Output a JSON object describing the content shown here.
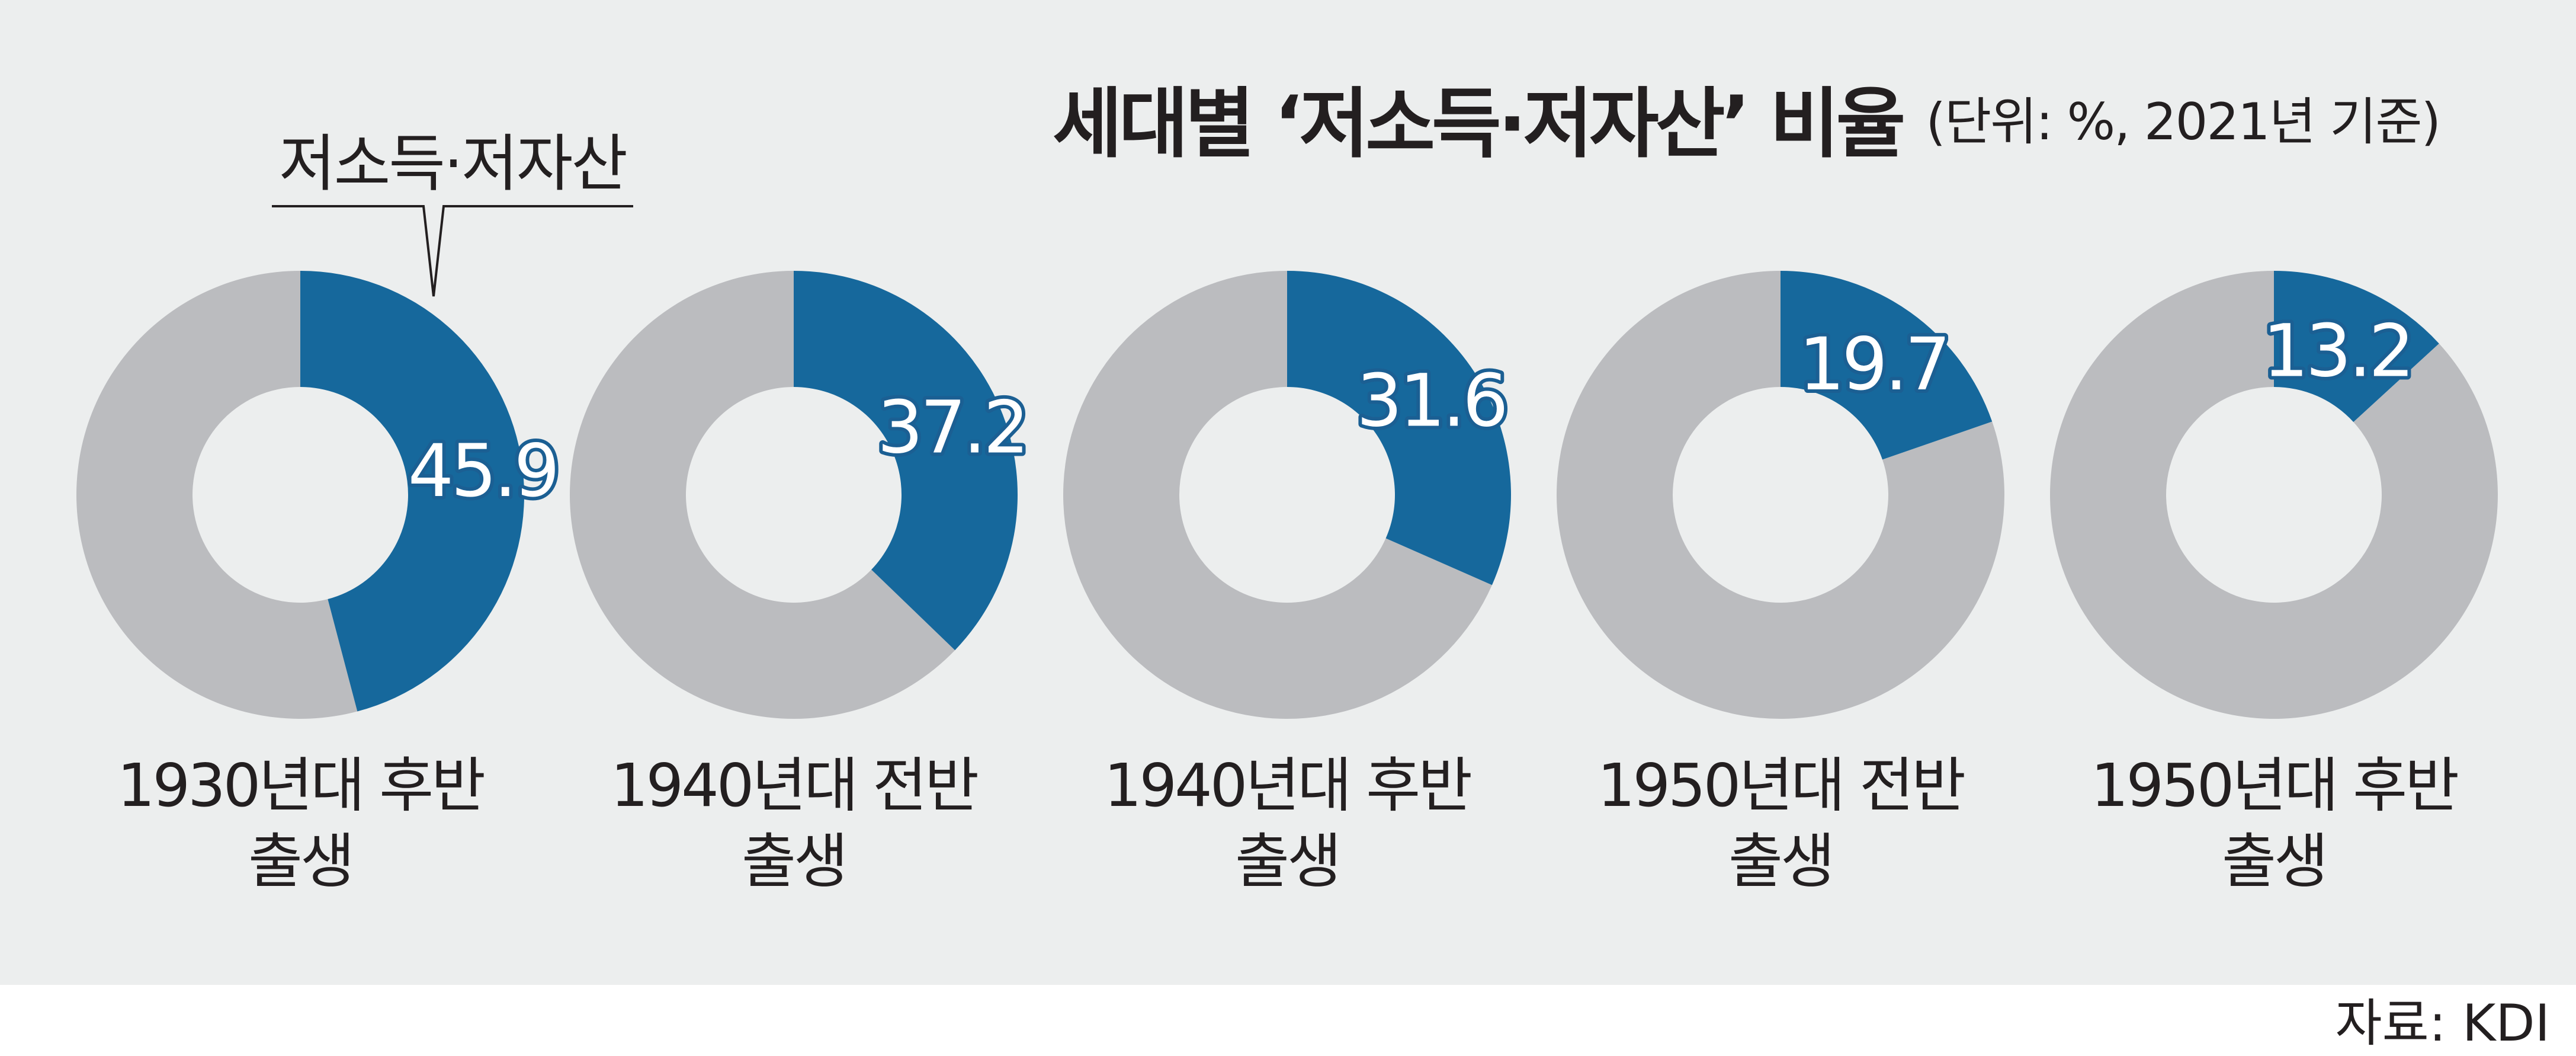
{
  "chart_data": {
    "type": "pie",
    "title": "세대별 ‘저소득·저자산’ 비율",
    "subtitle": "(단위: %, 2021년 기준)",
    "unit": "%",
    "series_name": "저소득·저자산",
    "categories": [
      [
        "1930년대 후반",
        "출생"
      ],
      [
        "1940년대 전반",
        "출생"
      ],
      [
        "1940년대 후반",
        "출생"
      ],
      [
        "1950년대 전반",
        "출생"
      ],
      [
        "1950년대 후반",
        "출생"
      ]
    ],
    "values": [
      45.9,
      37.2,
      31.6,
      19.7,
      13.2
    ],
    "value_labels": [
      "45.9",
      "37.2",
      "31.6",
      "19.7",
      "13.2"
    ],
    "highlight_color": "#16689c",
    "rest_color": "#bbbcbf",
    "source": "자료: KDI"
  }
}
